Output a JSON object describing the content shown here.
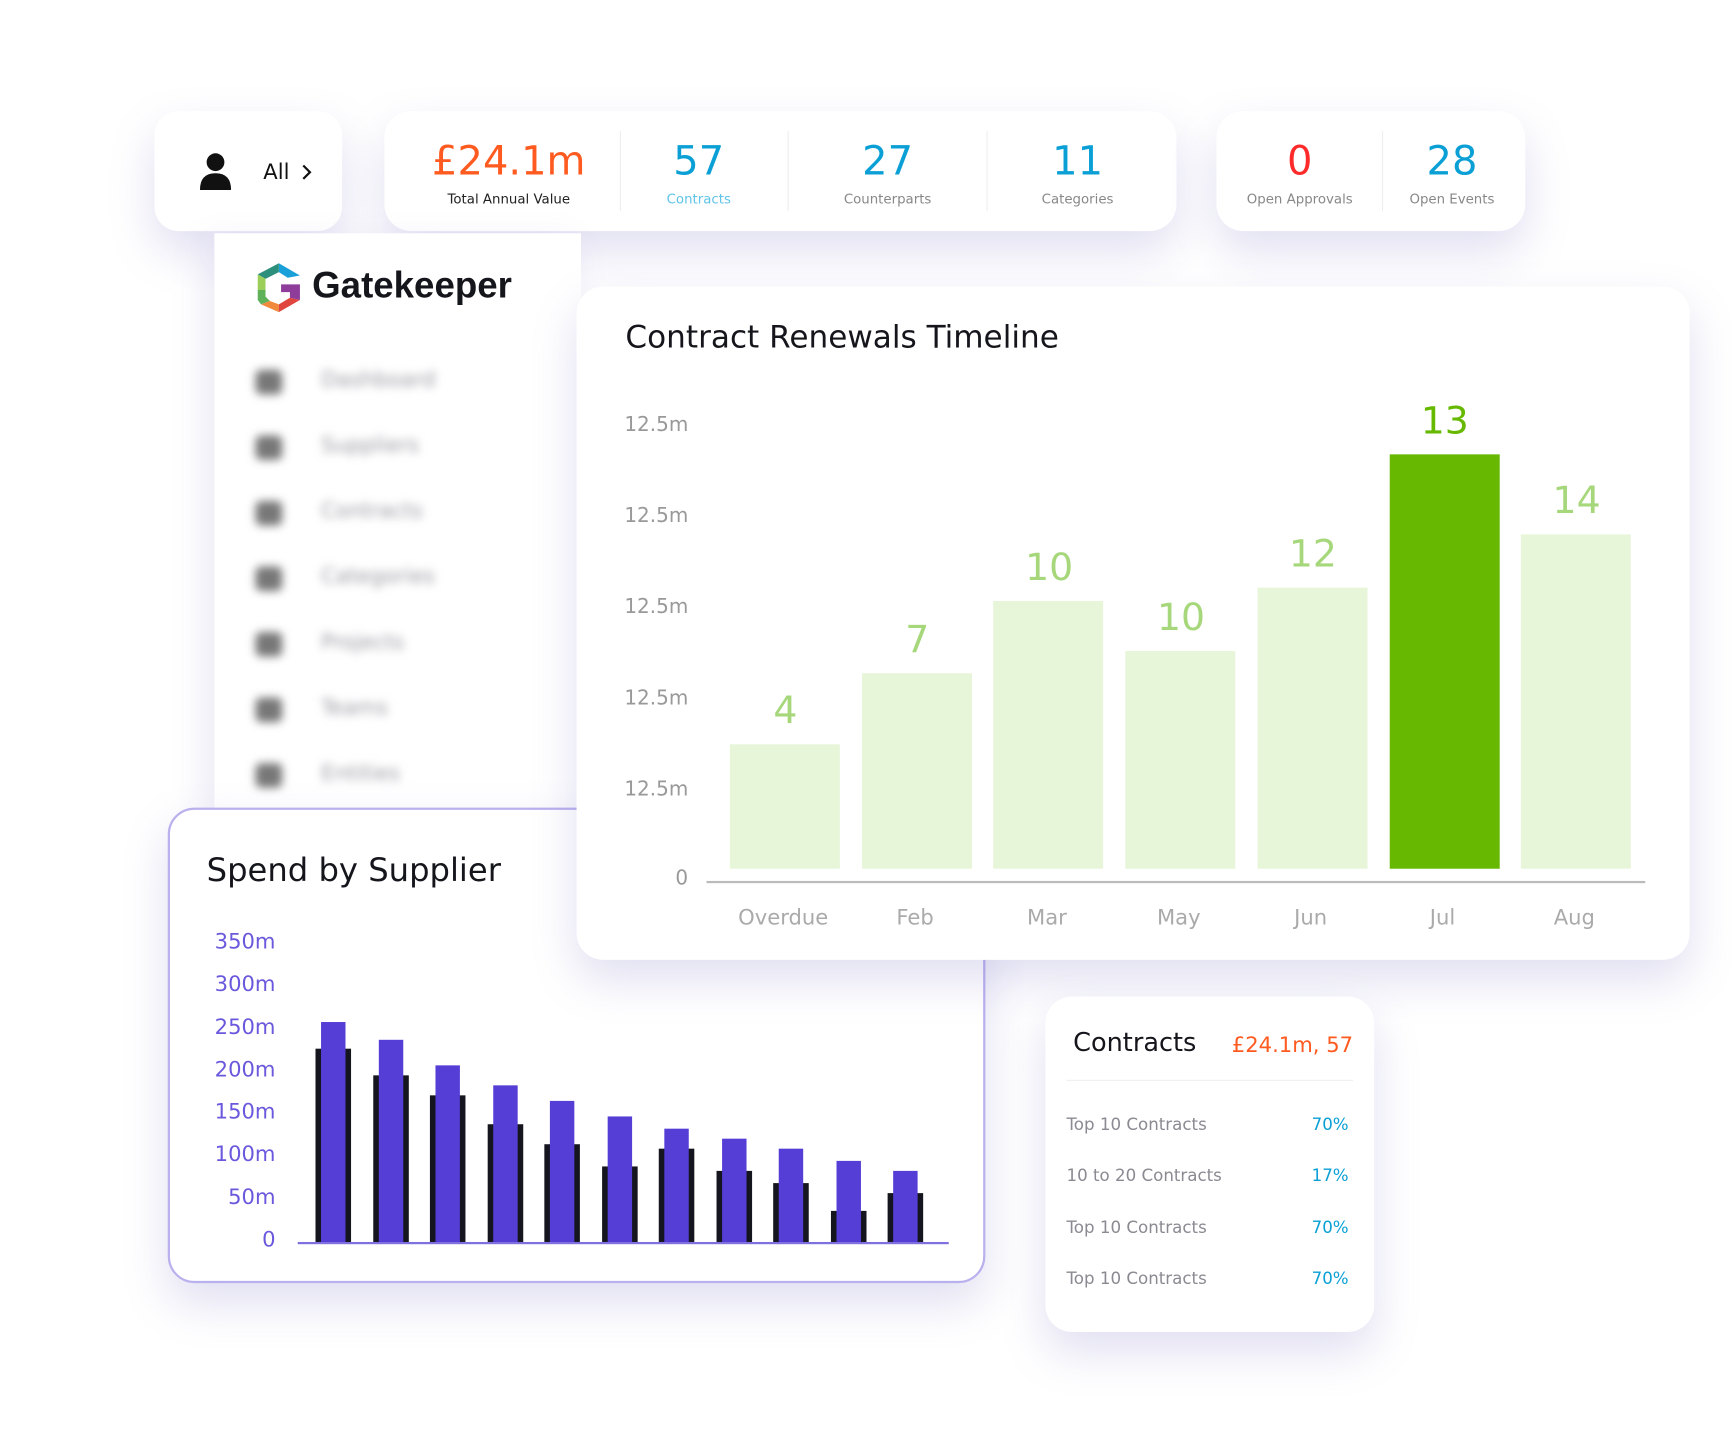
{
  "filter": {
    "label": "All",
    "icon": "user-icon",
    "chevron": "chevron-right-icon"
  },
  "stats": [
    {
      "value": "£24.1m",
      "label": "Total Annual Value",
      "color": "#ff5a1f",
      "label_color": "#222"
    },
    {
      "value": "57",
      "label": "Contracts",
      "color": "#0aa0d6",
      "label_color": "#5fc3ea"
    },
    {
      "value": "27",
      "label": "Counterparts",
      "color": "#0aa0d6",
      "label_color": "#888"
    },
    {
      "value": "11",
      "label": "Categories",
      "color": "#0aa0d6",
      "label_color": "#888"
    }
  ],
  "alerts": [
    {
      "value": "0",
      "label": "Open Approvals",
      "color": "#ff2a2a"
    },
    {
      "value": "28",
      "label": "Open Events",
      "color": "#0aa0d6"
    }
  ],
  "brand": {
    "name": "Gatekeeper"
  },
  "sidebar": {
    "items": [
      {
        "label": "Dashboard",
        "icon": "dashboard-icon"
      },
      {
        "label": "Suppliers",
        "icon": "suppliers-icon"
      },
      {
        "label": "Contracts",
        "icon": "document-icon"
      },
      {
        "label": "Categories",
        "icon": "categories-icon"
      },
      {
        "label": "Projects",
        "icon": "projects-icon"
      },
      {
        "label": "Teams",
        "icon": "teams-icon"
      },
      {
        "label": "Entities",
        "icon": "entities-icon"
      }
    ]
  },
  "contracts_summary": {
    "title": "Contracts",
    "total": "£24.1m, 57",
    "rows": [
      {
        "label": "Top 10 Contracts",
        "value": "70%"
      },
      {
        "label": "10 to 20 Contracts",
        "value": "17%"
      },
      {
        "label": "Top 10 Contracts",
        "value": "70%"
      },
      {
        "label": "Top 10 Contracts",
        "value": "70%"
      }
    ]
  },
  "chart_data": [
    {
      "type": "bar",
      "title": "Contract Renewals Timeline",
      "categories": [
        "Overdue",
        "Feb",
        "Mar",
        "May",
        "Jun",
        "Jul",
        "Aug"
      ],
      "values": [
        4,
        7,
        10,
        10,
        12,
        13,
        14
      ],
      "bar_levels": [
        0.28,
        0.44,
        0.6,
        0.49,
        0.63,
        0.93,
        0.75
      ],
      "highlight": "Jul",
      "yticks": [
        "0",
        "12.5m",
        "12.5m",
        "12.5m",
        "12.5m",
        "12.5m"
      ],
      "colors": {
        "bar": "#e7f5d9",
        "highlight": "#66b900",
        "label": "#a6d77b"
      },
      "grid": false
    },
    {
      "type": "bar",
      "title": "Spend by Supplier",
      "ylim": [
        0,
        350
      ],
      "yticks": [
        "0",
        "50m",
        "100m",
        "150m",
        "200m",
        "250m",
        "300m",
        "350m"
      ],
      "series": [
        {
          "values": [
            258,
            238,
            207,
            184,
            166,
            148,
            133,
            121,
            110,
            95,
            84
          ],
          "color": "#553ed6"
        },
        {
          "values": [
            227,
            196,
            172,
            138,
            115,
            89,
            110,
            84,
            69,
            37,
            57
          ],
          "color": "#15151f"
        }
      ],
      "grid": false
    }
  ]
}
